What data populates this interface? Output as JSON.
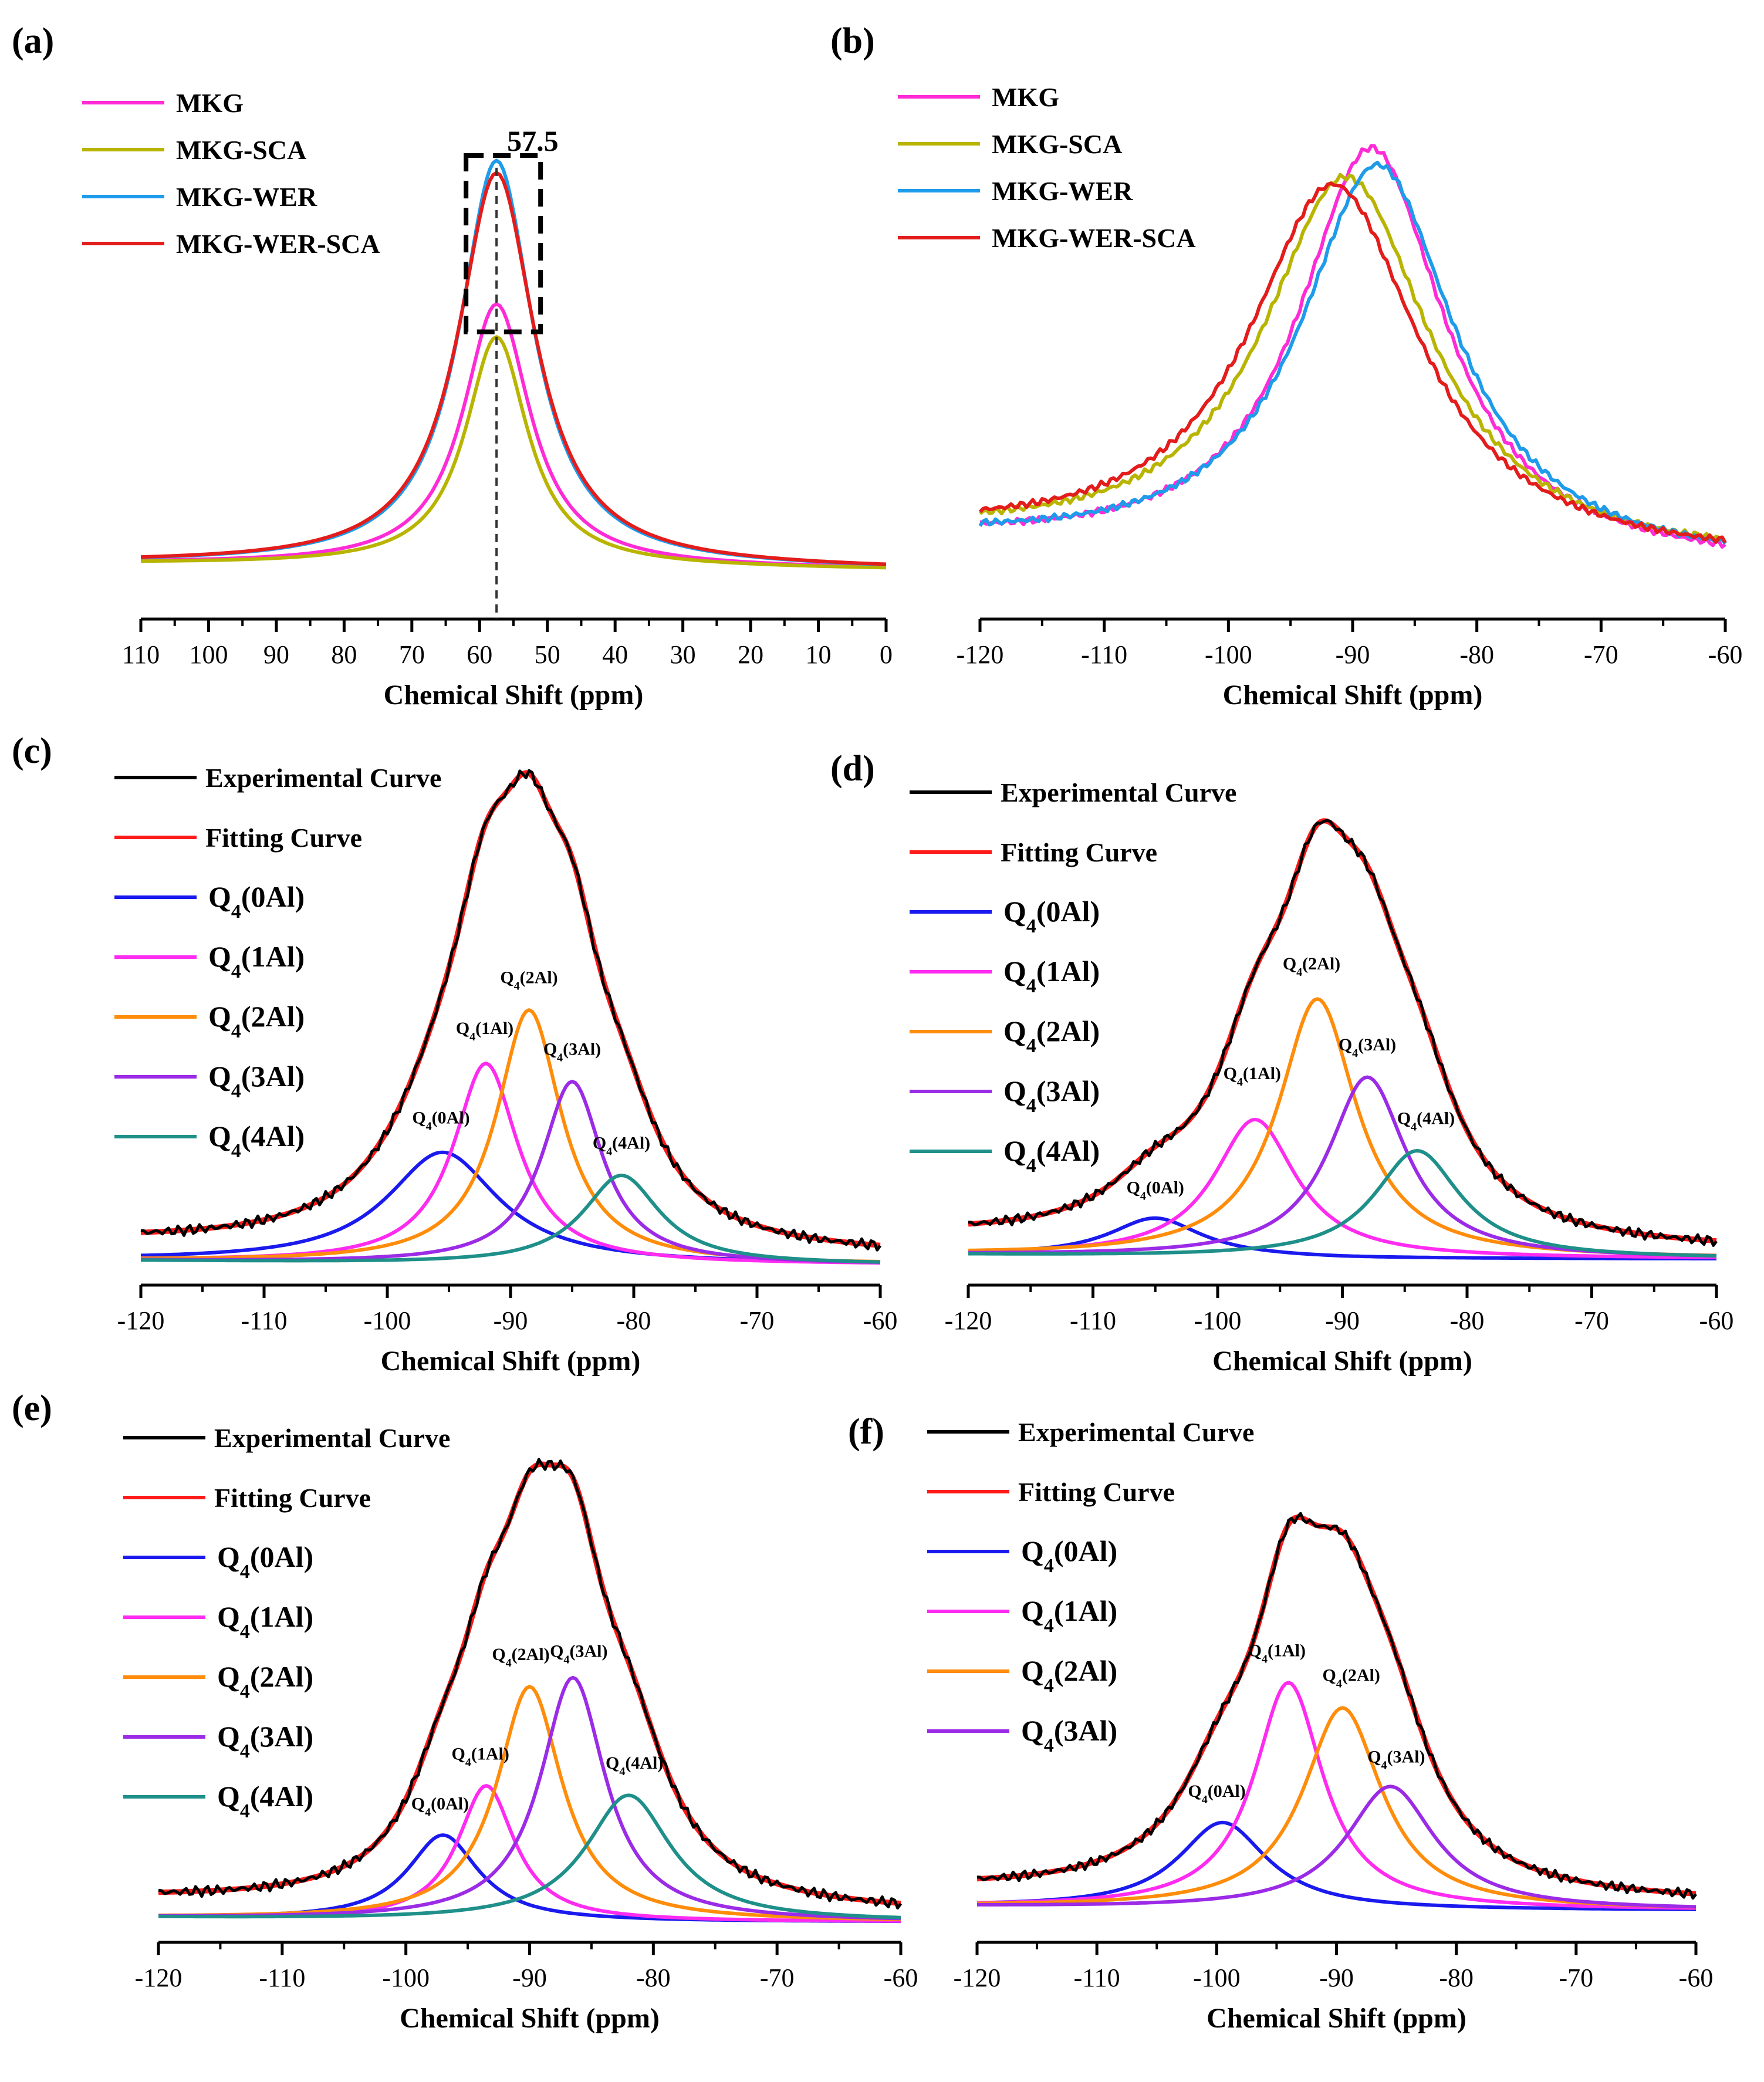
{
  "colors": {
    "MKG": "#ff2bd6",
    "MKG-SCA": "#b8b400",
    "MKG-WER": "#1e9bea",
    "MKG-WER-SCA": "#e31c1c",
    "Experimental": "#000000",
    "Fitting": "#ff1a1a",
    "Q0": "#1a1aee",
    "Q1": "#ff2bf0",
    "Q2": "#ff8c0a",
    "Q3": "#9b2be6",
    "Q4": "#1f8f8a"
  },
  "chart_data": [
    {
      "id": "a",
      "panel_label": "(a)",
      "type": "line",
      "xlabel": "Chemical Shift (ppm)",
      "xlim": [
        110,
        0
      ],
      "ylim": [
        0,
        1.08
      ],
      "xticks": [
        110,
        100,
        90,
        80,
        70,
        60,
        50,
        40,
        30,
        20,
        10,
        0
      ],
      "annotation": "57.5",
      "annotation_x": 57.5,
      "box_x": [
        62,
        51
      ],
      "box_y": [
        0.6,
        1.03
      ],
      "series": [
        {
          "name": "MKG",
          "color_key": "MKG",
          "peak": 57.5,
          "height": 0.64,
          "width": 6.0,
          "base": 0.02
        },
        {
          "name": "MKG-SCA",
          "color_key": "MKG-SCA",
          "peak": 57.5,
          "height": 0.56,
          "width": 5.6,
          "base": 0.02
        },
        {
          "name": "MKG-WER",
          "color_key": "MKG-WER",
          "peak": 57.5,
          "height": 0.99,
          "width": 6.6,
          "base": 0.02
        },
        {
          "name": "MKG-WER-SCA",
          "color_key": "MKG-WER-SCA",
          "peak": 57.5,
          "height": 0.96,
          "width": 6.9,
          "base": 0.02
        }
      ]
    },
    {
      "id": "b",
      "panel_label": "(b)",
      "type": "line",
      "xlabel": "Chemical Shift (ppm)",
      "xlim": [
        -120,
        -60
      ],
      "ylim": [
        0,
        1.05
      ],
      "xticks": [
        -120,
        -110,
        -100,
        -90,
        -80,
        -70,
        -60
      ],
      "series": [
        {
          "name": "MKG",
          "color_key": "MKG",
          "peak": -88.5,
          "height": 1.0,
          "width": 7.2,
          "base": 0.02
        },
        {
          "name": "MKG-SCA",
          "color_key": "MKG-SCA",
          "peak": -90.5,
          "height": 0.92,
          "width": 8.2,
          "base": 0.03
        },
        {
          "name": "MKG-WER",
          "color_key": "MKG-WER",
          "peak": -88.0,
          "height": 0.96,
          "width": 7.6,
          "base": 0.02
        },
        {
          "name": "MKG-WER-SCA",
          "color_key": "MKG-WER-SCA",
          "peak": -91.5,
          "height": 0.9,
          "width": 8.4,
          "base": 0.03
        }
      ]
    },
    {
      "id": "c",
      "panel_label": "(c)",
      "type": "line",
      "xlabel": "Chemical Shift  (ppm)",
      "xlim": [
        -120,
        -60
      ],
      "ylim": [
        0,
        1.05
      ],
      "xticks": [
        -120,
        -110,
        -100,
        -90,
        -80,
        -70,
        -60
      ],
      "components": [
        {
          "name": "Q4(0Al)",
          "color_key": "Q0",
          "center": -95.5,
          "height": 0.25,
          "width": 5.5
        },
        {
          "name": "Q4(1Al)",
          "color_key": "Q1",
          "center": -92.0,
          "height": 0.45,
          "width": 3.2
        },
        {
          "name": "Q4(2Al)",
          "color_key": "Q2",
          "center": -88.5,
          "height": 0.57,
          "width": 3.2
        },
        {
          "name": "Q4(3Al)",
          "color_key": "Q3",
          "center": -85.0,
          "height": 0.41,
          "width": 3.0
        },
        {
          "name": "Q4(4Al)",
          "color_key": "Q4",
          "center": -81.0,
          "height": 0.2,
          "width": 3.8
        }
      ]
    },
    {
      "id": "d",
      "panel_label": "(d)",
      "type": "line",
      "xlabel": "Chemical Shift (ppm)",
      "xlim": [
        -120,
        -60
      ],
      "ylim": [
        0,
        1.05
      ],
      "xticks": [
        -120,
        -110,
        -100,
        -90,
        -80,
        -70,
        -60
      ],
      "components": [
        {
          "name": "Q4(0Al)",
          "color_key": "Q0",
          "center": -105.0,
          "height": 0.09,
          "width": 4.5
        },
        {
          "name": "Q4(1Al)",
          "color_key": "Q1",
          "center": -97.0,
          "height": 0.32,
          "width": 4.0
        },
        {
          "name": "Q4(2Al)",
          "color_key": "Q2",
          "center": -92.0,
          "height": 0.6,
          "width": 3.8
        },
        {
          "name": "Q4(3Al)",
          "color_key": "Q3",
          "center": -88.0,
          "height": 0.42,
          "width": 3.8
        },
        {
          "name": "Q4(4Al)",
          "color_key": "Q4",
          "center": -84.0,
          "height": 0.25,
          "width": 4.2
        }
      ]
    },
    {
      "id": "e",
      "panel_label": "(e)",
      "type": "line",
      "xlabel": "Chemical Shift (ppm)",
      "xlim": [
        -120,
        -60
      ],
      "ylim": [
        0,
        1.05
      ],
      "xticks": [
        -120,
        -110,
        -100,
        -90,
        -80,
        -70,
        -60
      ],
      "components": [
        {
          "name": "Q4(0Al)",
          "color_key": "Q0",
          "center": -97.0,
          "height": 0.19,
          "width": 3.5
        },
        {
          "name": "Q4(1Al)",
          "color_key": "Q1",
          "center": -93.5,
          "height": 0.3,
          "width": 2.8
        },
        {
          "name": "Q4(2Al)",
          "color_key": "Q2",
          "center": -90.0,
          "height": 0.52,
          "width": 3.2
        },
        {
          "name": "Q4(3Al)",
          "color_key": "Q3",
          "center": -86.5,
          "height": 0.54,
          "width": 3.2
        },
        {
          "name": "Q4(4Al)",
          "color_key": "Q4",
          "center": -82.0,
          "height": 0.28,
          "width": 4.2
        }
      ]
    },
    {
      "id": "f",
      "panel_label": "(f)",
      "type": "line",
      "xlabel": "Chemical Shift (ppm)",
      "xlim": [
        -120,
        -60
      ],
      "ylim": [
        0,
        1.05
      ],
      "xticks": [
        -120,
        -110,
        -100,
        -90,
        -80,
        -70,
        -60
      ],
      "components": [
        {
          "name": "Q4(0Al)",
          "color_key": "Q0",
          "center": -99.5,
          "height": 0.21,
          "width": 4.5
        },
        {
          "name": "Q4(1Al)",
          "color_key": "Q1",
          "center": -94.0,
          "height": 0.55,
          "width": 3.5
        },
        {
          "name": "Q4(2Al)",
          "color_key": "Q2",
          "center": -89.5,
          "height": 0.49,
          "width": 4.0
        },
        {
          "name": "Q4(3Al)",
          "color_key": "Q3",
          "center": -85.5,
          "height": 0.3,
          "width": 4.5
        }
      ]
    }
  ],
  "legend_fit": {
    "experimental": "Experimental Curve",
    "fitting": "Fitting Curve"
  },
  "legend_q": {
    "prefix": "Q",
    "sub": "4",
    "labels": [
      "(0Al)",
      "(1Al)",
      "(2Al)",
      "(3Al)",
      "(4Al)"
    ]
  }
}
